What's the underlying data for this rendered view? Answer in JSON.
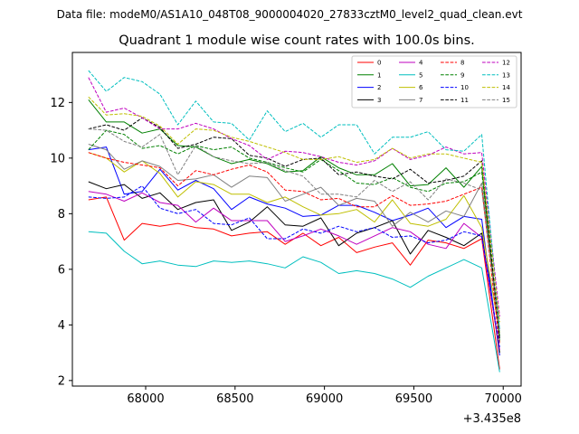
{
  "chart_data": {
    "type": "line",
    "suptitle": "Data file: modeM0/AS1A10_048T08_9000004020_27833cztM0_level2_quad_clean.evt",
    "title": "Quadrant 1 module wise count rates with 100.0s bins.",
    "xlabel": "",
    "ylabel": "",
    "x_offset_label": "+3.435e8",
    "xlim": [
      67590,
      70100
    ],
    "ylim": [
      1.8,
      13.8
    ],
    "xticks": [
      68000,
      68500,
      69000,
      69500,
      70000
    ],
    "xtick_labels": [
      "68000",
      "68500",
      "69000",
      "69500",
      "70000"
    ],
    "yticks": [
      2,
      4,
      6,
      8,
      10,
      12
    ],
    "ytick_labels": [
      "2",
      "4",
      "6",
      "8",
      "10",
      "12"
    ],
    "x": [
      67680,
      67780,
      67880,
      67980,
      68080,
      68180,
      68280,
      68380,
      68480,
      68580,
      68680,
      68780,
      68880,
      68980,
      69080,
      69180,
      69280,
      69380,
      69480,
      69580,
      69680,
      69780,
      69880,
      69980
    ],
    "legend": {
      "placement": "top-right",
      "ncol": 4
    },
    "series": [
      {
        "name": "0",
        "color": "#ff0000",
        "dash": "solid",
        "values": [
          8.5,
          8.6,
          7.05,
          7.65,
          7.55,
          7.65,
          7.5,
          7.45,
          7.2,
          7.3,
          7.35,
          6.9,
          7.3,
          6.85,
          7.15,
          6.6,
          6.8,
          6.95,
          6.15,
          7.05,
          6.95,
          6.75,
          7.1,
          2.4
        ]
      },
      {
        "name": "1",
        "color": "#008000",
        "dash": "solid",
        "values": [
          12.1,
          11.3,
          11.3,
          10.9,
          11.05,
          10.45,
          10.4,
          10.05,
          9.8,
          9.95,
          9.8,
          9.5,
          9.55,
          10.05,
          9.65,
          9.4,
          9.4,
          9.8,
          9.0,
          9.05,
          9.65,
          8.95,
          9.7,
          3.4
        ]
      },
      {
        "name": "2",
        "color": "#0000ff",
        "dash": "solid",
        "values": [
          10.3,
          10.4,
          8.7,
          8.8,
          9.6,
          8.85,
          9.2,
          8.9,
          8.15,
          8.6,
          8.35,
          8.2,
          7.9,
          7.95,
          8.3,
          8.3,
          8.05,
          7.75,
          7.95,
          8.2,
          7.5,
          7.9,
          7.8,
          2.9
        ]
      },
      {
        "name": "3",
        "color": "#000000",
        "dash": "solid",
        "values": [
          9.15,
          8.9,
          9.05,
          8.55,
          8.75,
          8.15,
          8.4,
          8.5,
          7.4,
          7.7,
          8.25,
          7.6,
          7.55,
          7.85,
          6.85,
          7.3,
          7.5,
          7.75,
          6.55,
          7.4,
          7.15,
          6.85,
          7.3,
          3.0
        ]
      },
      {
        "name": "4",
        "color": "#bf00bf",
        "dash": "solid",
        "values": [
          8.8,
          8.7,
          8.45,
          8.75,
          8.4,
          8.3,
          7.7,
          8.2,
          7.75,
          7.75,
          7.75,
          7.0,
          7.2,
          7.45,
          7.2,
          6.9,
          7.2,
          7.5,
          7.35,
          6.9,
          6.75,
          7.65,
          7.15,
          3.1
        ]
      },
      {
        "name": "5",
        "color": "#00bfbf",
        "dash": "solid",
        "values": [
          7.35,
          7.3,
          6.65,
          6.2,
          6.3,
          6.15,
          6.1,
          6.3,
          6.25,
          6.3,
          6.2,
          6.05,
          6.45,
          6.25,
          5.85,
          5.95,
          5.85,
          5.65,
          5.35,
          5.75,
          6.05,
          6.35,
          6.05,
          2.3
        ]
      },
      {
        "name": "6",
        "color": "#bfbf00",
        "dash": "solid",
        "values": [
          10.2,
          10.0,
          9.5,
          9.9,
          9.45,
          8.6,
          9.15,
          9.05,
          8.7,
          8.7,
          8.4,
          8.6,
          8.25,
          7.95,
          8.0,
          8.15,
          7.7,
          8.5,
          7.65,
          7.55,
          7.8,
          8.65,
          7.5,
          3.7
        ]
      },
      {
        "name": "7",
        "color": "#808080",
        "dash": "solid",
        "values": [
          10.5,
          10.3,
          9.6,
          9.9,
          9.7,
          9.2,
          9.25,
          9.4,
          8.95,
          9.35,
          9.3,
          8.45,
          8.7,
          8.95,
          8.3,
          8.55,
          8.45,
          7.55,
          8.05,
          7.7,
          8.1,
          7.9,
          9.1,
          3.85
        ]
      },
      {
        "name": "8",
        "color": "#ff0000",
        "dash": "dashed",
        "values": [
          10.2,
          10.0,
          9.85,
          9.75,
          9.65,
          9.0,
          9.55,
          9.4,
          9.6,
          9.75,
          9.5,
          8.85,
          8.8,
          8.5,
          8.55,
          8.25,
          8.25,
          8.65,
          8.3,
          8.35,
          8.45,
          8.7,
          8.95,
          3.3
        ]
      },
      {
        "name": "9",
        "color": "#008000",
        "dash": "dashed",
        "values": [
          10.3,
          11.0,
          10.85,
          10.35,
          10.45,
          10.15,
          10.45,
          10.3,
          10.4,
          10.0,
          9.85,
          9.65,
          9.5,
          9.95,
          9.55,
          9.1,
          9.05,
          9.3,
          8.95,
          8.8,
          9.1,
          9.15,
          9.5,
          3.6
        ]
      },
      {
        "name": "10",
        "color": "#0000ff",
        "dash": "dashed",
        "values": [
          8.6,
          8.55,
          8.6,
          9.0,
          8.2,
          8.0,
          8.15,
          7.65,
          7.6,
          7.85,
          7.1,
          7.1,
          7.45,
          7.3,
          7.55,
          7.35,
          7.5,
          7.15,
          7.2,
          6.95,
          7.05,
          7.35,
          7.2,
          3.2
        ]
      },
      {
        "name": "11",
        "color": "#000000",
        "dash": "dashed",
        "values": [
          11.05,
          11.2,
          11.0,
          11.45,
          11.1,
          10.35,
          10.5,
          10.75,
          10.7,
          10.1,
          10.0,
          9.7,
          9.95,
          10.0,
          9.4,
          9.5,
          9.35,
          9.25,
          9.6,
          9.1,
          9.2,
          9.35,
          9.9,
          3.5
        ]
      },
      {
        "name": "12",
        "color": "#bf00bf",
        "dash": "dashed",
        "values": [
          12.9,
          11.65,
          11.8,
          11.45,
          11.05,
          11.05,
          11.25,
          11.05,
          10.7,
          10.45,
          9.95,
          10.25,
          10.2,
          10.05,
          9.85,
          9.75,
          9.9,
          10.35,
          9.95,
          10.1,
          10.4,
          10.15,
          10.2,
          4.3
        ]
      },
      {
        "name": "13",
        "color": "#00bfbf",
        "dash": "dashed",
        "values": [
          13.15,
          12.4,
          12.9,
          12.75,
          12.3,
          11.2,
          12.05,
          11.3,
          11.25,
          10.65,
          11.7,
          10.95,
          11.25,
          10.75,
          11.2,
          11.2,
          10.15,
          10.75,
          10.75,
          10.95,
          10.3,
          10.25,
          10.85,
          3.8
        ]
      },
      {
        "name": "14",
        "color": "#bfbf00",
        "dash": "dashed",
        "values": [
          12.2,
          11.55,
          11.6,
          11.5,
          11.15,
          10.5,
          11.05,
          11.0,
          10.75,
          10.6,
          10.4,
          10.2,
          9.95,
          9.95,
          10.05,
          9.85,
          9.95,
          10.35,
          10.0,
          10.15,
          10.15,
          10.0,
          9.85,
          4.1
        ]
      },
      {
        "name": "15",
        "color": "#808080",
        "dash": "dashed",
        "values": [
          11.05,
          11.0,
          10.6,
          10.4,
          10.85,
          9.4,
          10.45,
          10.05,
          9.9,
          9.8,
          9.85,
          9.55,
          9.35,
          8.7,
          8.7,
          8.6,
          9.2,
          8.8,
          9.15,
          8.5,
          9.25,
          9.1,
          8.85,
          3.7
        ]
      }
    ]
  }
}
